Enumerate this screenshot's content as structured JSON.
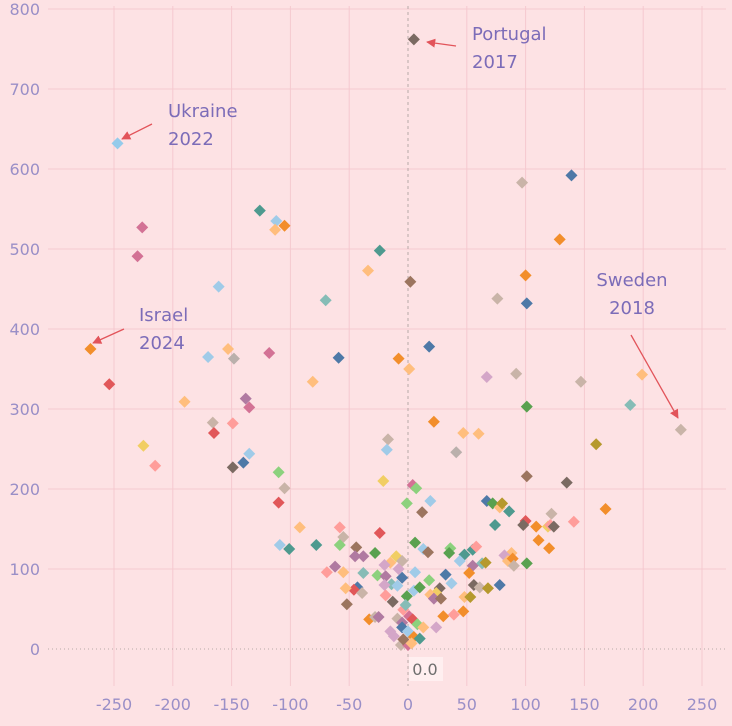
{
  "chart_data": {
    "type": "scatter",
    "title": "",
    "xlabel": "",
    "ylabel": "",
    "xlim": [
      -297,
      262
    ],
    "ylim": [
      -40,
      810
    ],
    "xticks": [
      -250,
      -200,
      -150,
      -100,
      -50,
      0,
      50,
      100,
      150,
      200,
      250
    ],
    "yticks": [
      0,
      100,
      200,
      300,
      400,
      500,
      600,
      700,
      800
    ],
    "xtick_labels": [
      "-250",
      "-200",
      "-150",
      "-100",
      "-50",
      "0",
      "50",
      "100",
      "150",
      "200",
      "250"
    ],
    "ytick_labels": [
      "0",
      "100",
      "200",
      "300",
      "400",
      "500",
      "600",
      "700",
      "800"
    ],
    "grid": true,
    "marker": "diamond",
    "origin_label": "0.0",
    "colors": {
      "background": "#FDE2E4",
      "grid": "#F5C9CF",
      "tick_text": "#9A8FC7",
      "annotation_text": "#7C6CB8",
      "arrow": "#E2545A",
      "zero_line": "#B8A9A9"
    },
    "annotations": [
      {
        "line1": "Portugal",
        "line2": "2017",
        "x": 5,
        "y": 762
      },
      {
        "line1": "Ukraine",
        "line2": "2022",
        "x": -247,
        "y": 632
      },
      {
        "line1": "Israel",
        "line2": "2024",
        "x": -270,
        "y": 375
      },
      {
        "line1": "Sweden",
        "line2": "2018",
        "x": 232,
        "y": 274
      }
    ],
    "points": [
      {
        "x": 5,
        "y": 762,
        "color": "#7B6A62"
      },
      {
        "x": -247,
        "y": 632,
        "color": "#95CBEB"
      },
      {
        "x": -270,
        "y": 375,
        "color": "#F28E2B"
      },
      {
        "x": 232,
        "y": 274,
        "color": "#C9B4A8"
      },
      {
        "x": 139,
        "y": 592,
        "color": "#4E79A7"
      },
      {
        "x": 97,
        "y": 583,
        "color": "#C9B4A8"
      },
      {
        "x": -126,
        "y": 548,
        "color": "#4E9A8F"
      },
      {
        "x": -112,
        "y": 535,
        "color": "#A0CBE8"
      },
      {
        "x": -113,
        "y": 524,
        "color": "#FFBE7D"
      },
      {
        "x": -105,
        "y": 529,
        "color": "#F28E2B"
      },
      {
        "x": -226,
        "y": 527,
        "color": "#D37295"
      },
      {
        "x": -230,
        "y": 491,
        "color": "#D37295"
      },
      {
        "x": 129,
        "y": 512,
        "color": "#F28E2B"
      },
      {
        "x": -24,
        "y": 498,
        "color": "#4E9A8F"
      },
      {
        "x": -34,
        "y": 473,
        "color": "#FFBE7D"
      },
      {
        "x": 100,
        "y": 467,
        "color": "#F28E2B"
      },
      {
        "x": 2,
        "y": 459,
        "color": "#9C755F"
      },
      {
        "x": -161,
        "y": 453,
        "color": "#A0CBE8"
      },
      {
        "x": 76,
        "y": 438,
        "color": "#C9B4A8"
      },
      {
        "x": 101,
        "y": 432,
        "color": "#4E79A7"
      },
      {
        "x": -70,
        "y": 436,
        "color": "#86BCB6"
      },
      {
        "x": 18,
        "y": 378,
        "color": "#4E79A7"
      },
      {
        "x": -118,
        "y": 370,
        "color": "#D37295"
      },
      {
        "x": -153,
        "y": 375,
        "color": "#FFBE7D"
      },
      {
        "x": -170,
        "y": 365,
        "color": "#A0CBE8"
      },
      {
        "x": -148,
        "y": 363,
        "color": "#BAB0AC"
      },
      {
        "x": -59,
        "y": 364,
        "color": "#4E79A7"
      },
      {
        "x": -8,
        "y": 363,
        "color": "#F28E2B"
      },
      {
        "x": 1,
        "y": 350,
        "color": "#FFBE7D"
      },
      {
        "x": 67,
        "y": 340,
        "color": "#D4A6C8"
      },
      {
        "x": 92,
        "y": 344,
        "color": "#C9B4A8"
      },
      {
        "x": 147,
        "y": 334,
        "color": "#C9B4A8"
      },
      {
        "x": 199,
        "y": 343,
        "color": "#FFBE7D"
      },
      {
        "x": -81,
        "y": 334,
        "color": "#FFBE7D"
      },
      {
        "x": -254,
        "y": 331,
        "color": "#E15759"
      },
      {
        "x": -190,
        "y": 309,
        "color": "#FFBE7D"
      },
      {
        "x": -138,
        "y": 313,
        "color": "#B07AA1"
      },
      {
        "x": -135,
        "y": 302,
        "color": "#D37295"
      },
      {
        "x": 101,
        "y": 303,
        "color": "#59A14F"
      },
      {
        "x": 189,
        "y": 305,
        "color": "#86BCB6"
      },
      {
        "x": -166,
        "y": 283,
        "color": "#C9B4A8"
      },
      {
        "x": -149,
        "y": 282,
        "color": "#FF9D9A"
      },
      {
        "x": 22,
        "y": 284,
        "color": "#F28E2B"
      },
      {
        "x": -165,
        "y": 270,
        "color": "#E15759"
      },
      {
        "x": 47,
        "y": 270,
        "color": "#FFBE7D"
      },
      {
        "x": 60,
        "y": 269,
        "color": "#FFBE7D"
      },
      {
        "x": -17,
        "y": 262,
        "color": "#C9B4A8"
      },
      {
        "x": 160,
        "y": 256,
        "color": "#B6992D"
      },
      {
        "x": -225,
        "y": 254,
        "color": "#F1CE63"
      },
      {
        "x": -18,
        "y": 249,
        "color": "#A0CBE8"
      },
      {
        "x": 41,
        "y": 246,
        "color": "#BAB0AC"
      },
      {
        "x": -135,
        "y": 244,
        "color": "#A0CBE8"
      },
      {
        "x": -140,
        "y": 233,
        "color": "#4E79A7"
      },
      {
        "x": -215,
        "y": 229,
        "color": "#FF9D9A"
      },
      {
        "x": -149,
        "y": 227,
        "color": "#7B6A62"
      },
      {
        "x": -110,
        "y": 221,
        "color": "#8CD17D"
      },
      {
        "x": 101,
        "y": 216,
        "color": "#9C755F"
      },
      {
        "x": 135,
        "y": 208,
        "color": "#7B6A62"
      },
      {
        "x": -21,
        "y": 210,
        "color": "#F1CE63"
      },
      {
        "x": 4,
        "y": 205,
        "color": "#D37295"
      },
      {
        "x": 7,
        "y": 201,
        "color": "#8CD17D"
      },
      {
        "x": -105,
        "y": 201,
        "color": "#C9B4A8"
      },
      {
        "x": -110,
        "y": 183,
        "color": "#E15759"
      },
      {
        "x": -1,
        "y": 182,
        "color": "#8CD17D"
      },
      {
        "x": 19,
        "y": 185,
        "color": "#A0CBE8"
      },
      {
        "x": 67,
        "y": 185,
        "color": "#4E79A7"
      },
      {
        "x": 72,
        "y": 182,
        "color": "#59A14F"
      },
      {
        "x": 78,
        "y": 177,
        "color": "#FFBE7D"
      },
      {
        "x": 80,
        "y": 182,
        "color": "#B6992D"
      },
      {
        "x": 86,
        "y": 172,
        "color": "#4E9A8F"
      },
      {
        "x": 12,
        "y": 171,
        "color": "#9C755F"
      },
      {
        "x": 168,
        "y": 175,
        "color": "#F28E2B"
      },
      {
        "x": 141,
        "y": 159,
        "color": "#FF9D9A"
      },
      {
        "x": 100,
        "y": 160,
        "color": "#E15759"
      },
      {
        "x": 98,
        "y": 155,
        "color": "#7B6A62"
      },
      {
        "x": 74,
        "y": 155,
        "color": "#4E9A8F"
      },
      {
        "x": 109,
        "y": 153,
        "color": "#F28E2B"
      },
      {
        "x": 119,
        "y": 153,
        "color": "#F1CE63"
      },
      {
        "x": 121,
        "y": 155,
        "color": "#FF9D9A"
      },
      {
        "x": 124,
        "y": 153,
        "color": "#7B6A62"
      },
      {
        "x": 122,
        "y": 169,
        "color": "#C9B4A8"
      },
      {
        "x": 111,
        "y": 136,
        "color": "#F28E2B"
      },
      {
        "x": 120,
        "y": 126,
        "color": "#F28E2B"
      },
      {
        "x": -92,
        "y": 152,
        "color": "#FFBE7D"
      },
      {
        "x": -58,
        "y": 152,
        "color": "#FF9D9A"
      },
      {
        "x": -55,
        "y": 140,
        "color": "#C9B4A8"
      },
      {
        "x": -24,
        "y": 145,
        "color": "#E15759"
      },
      {
        "x": -109,
        "y": 130,
        "color": "#A0CBE8"
      },
      {
        "x": -101,
        "y": 125,
        "color": "#4E9A8F"
      },
      {
        "x": -78,
        "y": 130,
        "color": "#4E9A8F"
      },
      {
        "x": -58,
        "y": 130,
        "color": "#8CD17D"
      },
      {
        "x": -44,
        "y": 127,
        "color": "#9C755F"
      },
      {
        "x": -45,
        "y": 116,
        "color": "#B07AA1"
      },
      {
        "x": -38,
        "y": 116,
        "color": "#B07AA1"
      },
      {
        "x": -28,
        "y": 120,
        "color": "#59A14F"
      },
      {
        "x": -10,
        "y": 116,
        "color": "#F1CE63"
      },
      {
        "x": 6,
        "y": 133,
        "color": "#59A14F"
      },
      {
        "x": 13,
        "y": 125,
        "color": "#A0CBE8"
      },
      {
        "x": 17,
        "y": 121,
        "color": "#9C755F"
      },
      {
        "x": 36,
        "y": 126,
        "color": "#8CD17D"
      },
      {
        "x": 35,
        "y": 120,
        "color": "#59A14F"
      },
      {
        "x": 48,
        "y": 118,
        "color": "#4E9A8F"
      },
      {
        "x": 55,
        "y": 124,
        "color": "#4E9A8F"
      },
      {
        "x": 58,
        "y": 128,
        "color": "#FF9D9A"
      },
      {
        "x": 88,
        "y": 120,
        "color": "#FFBE7D"
      },
      {
        "x": 82,
        "y": 117,
        "color": "#D4A6C8"
      },
      {
        "x": 85,
        "y": 110,
        "color": "#FFBE7D"
      },
      {
        "x": 89,
        "y": 113,
        "color": "#F28E2B"
      },
      {
        "x": 101,
        "y": 107,
        "color": "#59A14F"
      },
      {
        "x": 90,
        "y": 104,
        "color": "#C9B4A8"
      },
      {
        "x": 63,
        "y": 107,
        "color": "#86BCB6"
      },
      {
        "x": 66,
        "y": 108,
        "color": "#B6992D"
      },
      {
        "x": 55,
        "y": 104,
        "color": "#B07AA1"
      },
      {
        "x": 44,
        "y": 110,
        "color": "#A0CBE8"
      },
      {
        "x": 52,
        "y": 95,
        "color": "#F28E2B"
      },
      {
        "x": 32,
        "y": 93,
        "color": "#4E79A7"
      },
      {
        "x": 6,
        "y": 96,
        "color": "#A0CBE8"
      },
      {
        "x": -5,
        "y": 110,
        "color": "#C9B4A8"
      },
      {
        "x": -15,
        "y": 108,
        "color": "#FFBE7D"
      },
      {
        "x": -20,
        "y": 105,
        "color": "#D4A6C8"
      },
      {
        "x": -8,
        "y": 100,
        "color": "#D4A6C8"
      },
      {
        "x": -62,
        "y": 103,
        "color": "#B07AA1"
      },
      {
        "x": -55,
        "y": 96,
        "color": "#FFBE7D"
      },
      {
        "x": -69,
        "y": 96,
        "color": "#FF9D9A"
      },
      {
        "x": -38,
        "y": 95,
        "color": "#86BCB6"
      },
      {
        "x": -26,
        "y": 92,
        "color": "#8CD17D"
      },
      {
        "x": -19,
        "y": 91,
        "color": "#B07AA1"
      },
      {
        "x": -5,
        "y": 89,
        "color": "#4E79A7"
      },
      {
        "x": 18,
        "y": 86,
        "color": "#8CD17D"
      },
      {
        "x": 37,
        "y": 82,
        "color": "#A0CBE8"
      },
      {
        "x": 56,
        "y": 80,
        "color": "#7B6A62"
      },
      {
        "x": 61,
        "y": 77,
        "color": "#C9B4A8"
      },
      {
        "x": 68,
        "y": 76,
        "color": "#B6992D"
      },
      {
        "x": 78,
        "y": 80,
        "color": "#4E79A7"
      },
      {
        "x": -14,
        "y": 81,
        "color": "#86BCB6"
      },
      {
        "x": -20,
        "y": 80,
        "color": "#D4A6C8"
      },
      {
        "x": -9,
        "y": 79,
        "color": "#A0CBE8"
      },
      {
        "x": -43,
        "y": 77,
        "color": "#4E79A7"
      },
      {
        "x": -46,
        "y": 74,
        "color": "#E15759"
      },
      {
        "x": -53,
        "y": 76,
        "color": "#FFBE7D"
      },
      {
        "x": -39,
        "y": 70,
        "color": "#C9B4A8"
      },
      {
        "x": -19,
        "y": 67,
        "color": "#FF9D9A"
      },
      {
        "x": -1,
        "y": 66,
        "color": "#59A14F"
      },
      {
        "x": 5,
        "y": 73,
        "color": "#A0CBE8"
      },
      {
        "x": 10,
        "y": 77,
        "color": "#59A14F"
      },
      {
        "x": 27,
        "y": 76,
        "color": "#7B6A62"
      },
      {
        "x": 24,
        "y": 70,
        "color": "#F1CE63"
      },
      {
        "x": 19,
        "y": 68,
        "color": "#FFBE7D"
      },
      {
        "x": 22,
        "y": 63,
        "color": "#B07AA1"
      },
      {
        "x": 28,
        "y": 63,
        "color": "#9C755F"
      },
      {
        "x": 48,
        "y": 65,
        "color": "#FFBE7D"
      },
      {
        "x": 53,
        "y": 65,
        "color": "#B6992D"
      },
      {
        "x": 47,
        "y": 47,
        "color": "#F28E2B"
      },
      {
        "x": 39,
        "y": 43,
        "color": "#FF9D9A"
      },
      {
        "x": -13,
        "y": 59,
        "color": "#7B6A62"
      },
      {
        "x": -4,
        "y": 49,
        "color": "#FF9D9A"
      },
      {
        "x": -2,
        "y": 55,
        "color": "#86BCB6"
      },
      {
        "x": -52,
        "y": 56,
        "color": "#9C755F"
      },
      {
        "x": -33,
        "y": 37,
        "color": "#F28E2B"
      },
      {
        "x": -28,
        "y": 40,
        "color": "#C9B4A8"
      },
      {
        "x": -25,
        "y": 40,
        "color": "#B07AA1"
      },
      {
        "x": -9,
        "y": 38,
        "color": "#C9B4A8"
      },
      {
        "x": -5,
        "y": 33,
        "color": "#B07AA1"
      },
      {
        "x": 1,
        "y": 41,
        "color": "#D37295"
      },
      {
        "x": 4,
        "y": 37,
        "color": "#E15759"
      },
      {
        "x": 8,
        "y": 31,
        "color": "#8CD17D"
      },
      {
        "x": 13,
        "y": 27,
        "color": "#FFBE7D"
      },
      {
        "x": 24,
        "y": 27,
        "color": "#D4A6C8"
      },
      {
        "x": 30,
        "y": 41,
        "color": "#F28E2B"
      },
      {
        "x": -5,
        "y": 27,
        "color": "#4E79A7"
      },
      {
        "x": 0,
        "y": 22,
        "color": "#A0CBE8"
      },
      {
        "x": -15,
        "y": 22,
        "color": "#D4A6C8"
      },
      {
        "x": -12,
        "y": 16,
        "color": "#D4A6C8"
      },
      {
        "x": 5,
        "y": 15,
        "color": "#F28E2B"
      },
      {
        "x": 10,
        "y": 13,
        "color": "#4E9A8F"
      },
      {
        "x": -6,
        "y": 5,
        "color": "#C9B4A8"
      },
      {
        "x": 0,
        "y": 5,
        "color": "#D37295"
      },
      {
        "x": 3,
        "y": 7,
        "color": "#FFBE7D"
      },
      {
        "x": -4,
        "y": 12,
        "color": "#9C755F"
      }
    ]
  }
}
